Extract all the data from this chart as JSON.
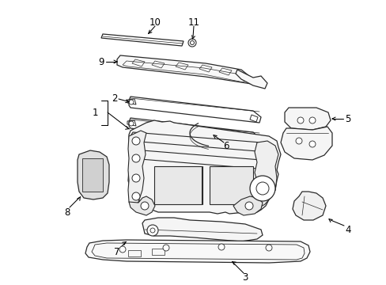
{
  "bg_color": "#ffffff",
  "line_color": "#2a2a2a",
  "label_color": "#000000",
  "font_size": 8.5,
  "figsize": [
    4.89,
    3.6
  ],
  "dpi": 100
}
